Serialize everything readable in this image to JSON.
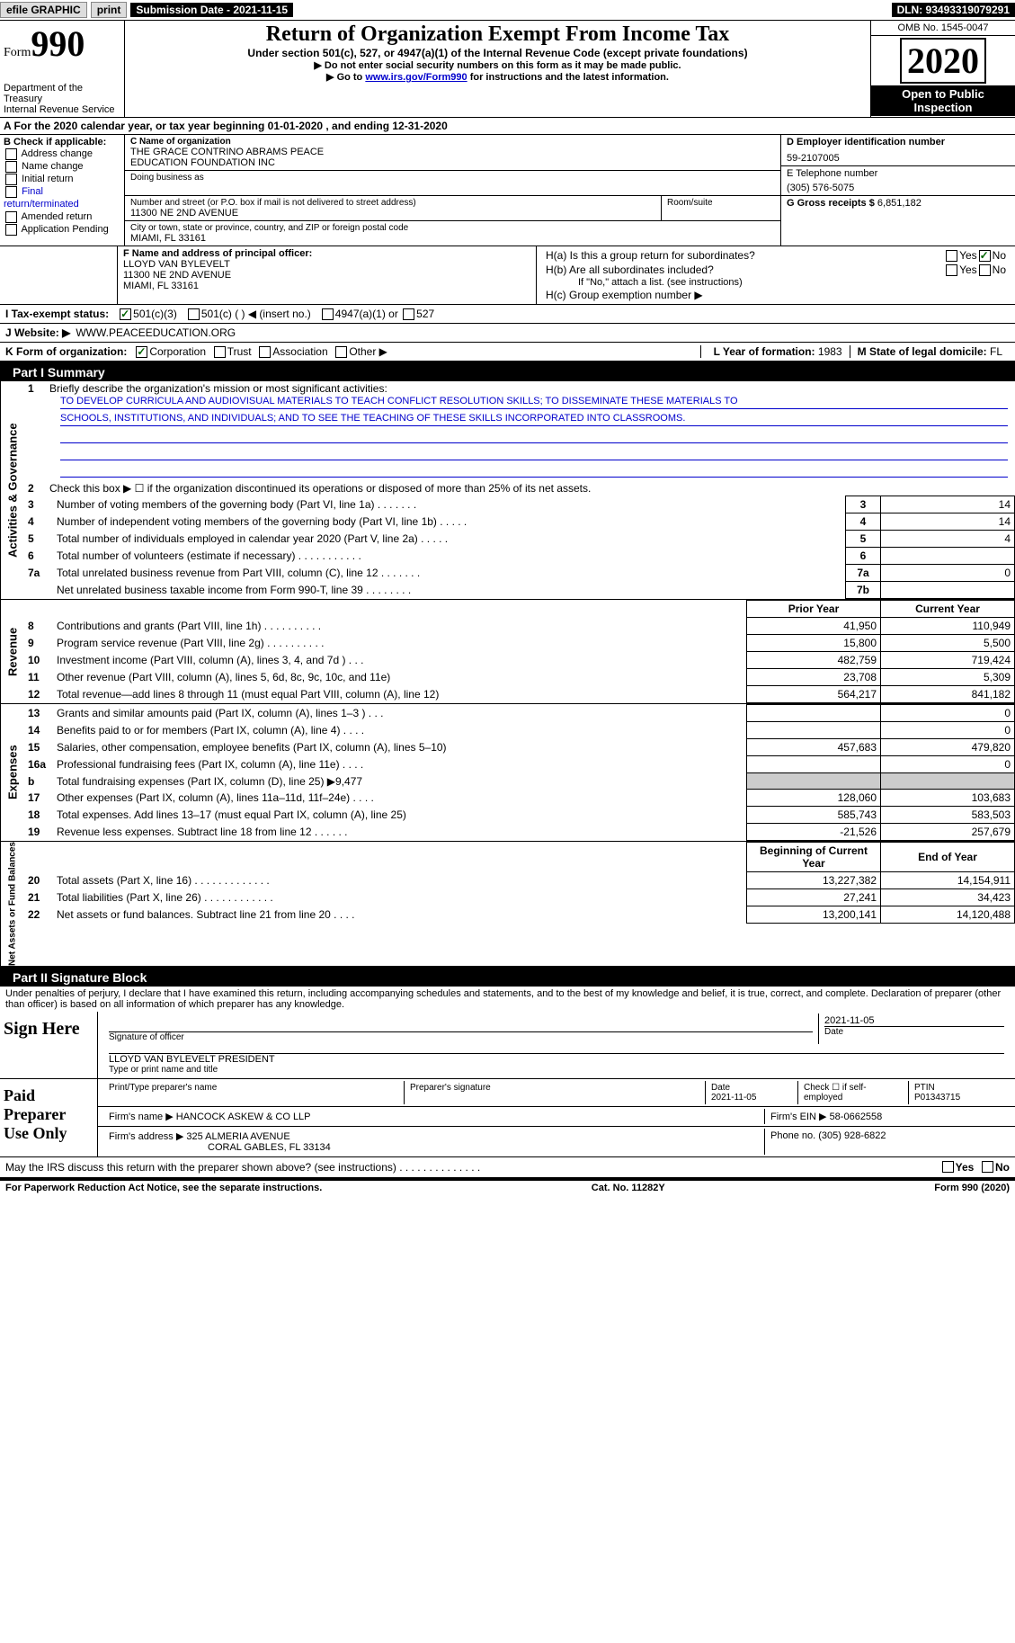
{
  "top_bar": {
    "efile": "efile GRAPHIC",
    "print": "print",
    "submission_date_label": "Submission Date - 2021-11-15",
    "dln": "DLN: 93493319079291"
  },
  "header": {
    "form_label": "Form",
    "form_number": "990",
    "dept": "Department of the Treasury",
    "irs": "Internal Revenue Service",
    "title": "Return of Organization Exempt From Income Tax",
    "subtitle": "Under section 501(c), 527, or 4947(a)(1) of the Internal Revenue Code (except private foundations)",
    "note1": "▶ Do not enter social security numbers on this form as it may be made public.",
    "note2_prefix": "▶ Go to ",
    "note2_link": "www.irs.gov/Form990",
    "note2_suffix": " for instructions and the latest information.",
    "omb": "OMB No. 1545-0047",
    "year": "2020",
    "open": "Open to Public Inspection"
  },
  "row_a": "A For the 2020 calendar year, or tax year beginning 01-01-2020    , and ending 12-31-2020",
  "block_b": {
    "header": "B Check if applicable:",
    "items": [
      "Address change",
      "Name change",
      "Initial return",
      "Final return/terminated",
      "Amended return",
      "Application Pending"
    ]
  },
  "block_c": {
    "name_label": "C Name of organization",
    "name1": "THE GRACE CONTRINO ABRAMS PEACE",
    "name2": "EDUCATION FOUNDATION INC",
    "dba_label": "Doing business as",
    "addr_label": "Number and street (or P.O. box if mail is not delivered to street address)",
    "room_label": "Room/suite",
    "addr": "11300 NE 2ND AVENUE",
    "city_label": "City or town, state or province, country, and ZIP or foreign postal code",
    "city": "MIAMI, FL  33161"
  },
  "block_d": {
    "ein_label": "D Employer identification number",
    "ein": "59-2107005",
    "phone_label": "E Telephone number",
    "phone": "(305) 576-5075",
    "gross_label": "G Gross receipts $",
    "gross": "6,851,182"
  },
  "block_f": {
    "label": "F Name and address of principal officer:",
    "name": "LLOYD VAN BYLEVELT",
    "addr": "11300 NE 2ND AVENUE",
    "city": "MIAMI, FL  33161"
  },
  "block_h": {
    "a": "H(a)  Is this a group return for subordinates?",
    "a_yes": "Yes",
    "a_no": "No",
    "b": "H(b)  Are all subordinates included?",
    "b_note": "If \"No,\" attach a list. (see instructions)",
    "c": "H(c)  Group exemption number ▶"
  },
  "row_i": {
    "label": "I   Tax-exempt status:",
    "opt1": "501(c)(3)",
    "opt2": "501(c) (  ) ◀ (insert no.)",
    "opt3": "4947(a)(1) or",
    "opt4": "527"
  },
  "row_j": {
    "label": "J   Website: ▶",
    "value": "WWW.PEACEEDUCATION.ORG"
  },
  "row_k": {
    "label": "K Form of organization:",
    "opts": [
      "Corporation",
      "Trust",
      "Association",
      "Other ▶"
    ],
    "l_label": "L Year of formation:",
    "l_val": "1983",
    "m_label": "M State of legal domicile:",
    "m_val": "FL"
  },
  "part1": {
    "header": "Part I     Summary",
    "side_ag": "Activities & Governance",
    "side_rev": "Revenue",
    "side_exp": "Expenses",
    "side_na": "Net Assets or Fund Balances",
    "line1_label": "Briefly describe the organization's mission or most significant activities:",
    "mission1": "TO DEVELOP CURRICULA AND AUDIOVISUAL MATERIALS TO TEACH CONFLICT RESOLUTION SKILLS; TO DISSEMINATE THESE MATERIALS TO",
    "mission2": "SCHOOLS, INSTITUTIONS, AND INDIVIDUALS; AND TO SEE THE TEACHING OF THESE SKILLS INCORPORATED INTO CLASSROOMS.",
    "line2": "Check this box ▶ ☐  if the organization discontinued its operations or disposed of more than 25% of its net assets.",
    "lines_ag": [
      {
        "n": "3",
        "t": "Number of voting members of the governing body (Part VI, line 1a)   .    .    .    .    .    .    .",
        "b": "3",
        "v": "14"
      },
      {
        "n": "4",
        "t": "Number of independent voting members of the governing body (Part VI, line 1b)   .    .    .    .    .",
        "b": "4",
        "v": "14"
      },
      {
        "n": "5",
        "t": "Total number of individuals employed in calendar year 2020 (Part V, line 2a)   .    .    .    .    .",
        "b": "5",
        "v": "4"
      },
      {
        "n": "6",
        "t": "Total number of volunteers (estimate if necessary)   .    .    .    .    .    .    .    .    .    .    .",
        "b": "6",
        "v": ""
      },
      {
        "n": "7a",
        "t": "Total unrelated business revenue from Part VIII, column (C), line 12   .    .    .    .    .    .    .",
        "b": "7a",
        "v": "0"
      },
      {
        "n": "",
        "t": "Net unrelated business taxable income from Form 990-T, line 39   .    .    .    .    .    .    .    .",
        "b": "7b",
        "v": ""
      }
    ],
    "py_header": "Prior Year",
    "cy_header": "Current Year",
    "lines_rev": [
      {
        "n": "8",
        "t": "Contributions and grants (Part VIII, line 1h)   .    .    .    .    .    .    .    .    .    .",
        "py": "41,950",
        "cy": "110,949"
      },
      {
        "n": "9",
        "t": "Program service revenue (Part VIII, line 2g)   .    .    .    .    .    .    .    .    .    .",
        "py": "15,800",
        "cy": "5,500"
      },
      {
        "n": "10",
        "t": "Investment income (Part VIII, column (A), lines 3, 4, and 7d )   .    .    .",
        "py": "482,759",
        "cy": "719,424"
      },
      {
        "n": "11",
        "t": "Other revenue (Part VIII, column (A), lines 5, 6d, 8c, 9c, 10c, and 11e)",
        "py": "23,708",
        "cy": "5,309"
      },
      {
        "n": "12",
        "t": "Total revenue—add lines 8 through 11 (must equal Part VIII, column (A), line 12)",
        "py": "564,217",
        "cy": "841,182"
      }
    ],
    "lines_exp": [
      {
        "n": "13",
        "t": "Grants and similar amounts paid (Part IX, column (A), lines 1–3 )   .    .    .",
        "py": "",
        "cy": "0"
      },
      {
        "n": "14",
        "t": "Benefits paid to or for members (Part IX, column (A), line 4)   .    .    .    .",
        "py": "",
        "cy": "0"
      },
      {
        "n": "15",
        "t": "Salaries, other compensation, employee benefits (Part IX, column (A), lines 5–10)",
        "py": "457,683",
        "cy": "479,820"
      },
      {
        "n": "16a",
        "t": "Professional fundraising fees (Part IX, column (A), line 11e)   .    .    .    .",
        "py": "",
        "cy": "0"
      },
      {
        "n": "b",
        "t": "Total fundraising expenses (Part IX, column (D), line 25) ▶9,477",
        "py": "GRAY",
        "cy": "GRAY"
      },
      {
        "n": "17",
        "t": "Other expenses (Part IX, column (A), lines 11a–11d, 11f–24e)   .    .    .    .",
        "py": "128,060",
        "cy": "103,683"
      },
      {
        "n": "18",
        "t": "Total expenses. Add lines 13–17 (must equal Part IX, column (A), line 25)",
        "py": "585,743",
        "cy": "583,503"
      },
      {
        "n": "19",
        "t": "Revenue less expenses. Subtract line 18 from line 12   .    .    .    .    .    .",
        "py": "-21,526",
        "cy": "257,679"
      }
    ],
    "boy_header": "Beginning of Current Year",
    "eoy_header": "End of Year",
    "lines_na": [
      {
        "n": "20",
        "t": "Total assets (Part X, line 16)   .    .    .    .    .    .    .    .    .    .    .    .    .",
        "py": "13,227,382",
        "cy": "14,154,911"
      },
      {
        "n": "21",
        "t": "Total liabilities (Part X, line 26)   .    .    .    .    .    .    .    .    .    .    .    .",
        "py": "27,241",
        "cy": "34,423"
      },
      {
        "n": "22",
        "t": "Net assets or fund balances. Subtract line 21 from line 20   .    .    .    .",
        "py": "13,200,141",
        "cy": "14,120,488"
      }
    ]
  },
  "part2": {
    "header": "Part II    Signature Block",
    "declaration": "Under penalties of perjury, I declare that I have examined this return, including accompanying schedules and statements, and to the best of my knowledge and belief, it is true, correct, and complete. Declaration of preparer (other than officer) is based on all information of which preparer has any knowledge.",
    "sign_here": "Sign Here",
    "sig_officer": "Signature of officer",
    "sig_date": "2021-11-05",
    "date_lbl": "Date",
    "officer_name": "LLOYD VAN BYLEVELT  PRESIDENT",
    "officer_type": "Type or print name and title",
    "paid": "Paid Preparer Use Only",
    "prep_name_lbl": "Print/Type preparer's name",
    "prep_sig_lbl": "Preparer's signature",
    "prep_date_lbl": "Date",
    "prep_date": "2021-11-05",
    "check_lbl": "Check ☐ if self-employed",
    "ptin_lbl": "PTIN",
    "ptin": "P01343715",
    "firm_name_lbl": "Firm's name    ▶",
    "firm_name": "HANCOCK ASKEW & CO LLP",
    "firm_ein_lbl": "Firm's EIN ▶",
    "firm_ein": "58-0662558",
    "firm_addr_lbl": "Firm's address ▶",
    "firm_addr1": "325 ALMERIA AVENUE",
    "firm_addr2": "CORAL GABLES, FL  33134",
    "firm_phone_lbl": "Phone no.",
    "firm_phone": "(305) 928-6822",
    "discuss": "May the IRS discuss this return with the preparer shown above? (see instructions)   .    .    .    .    .    .    .    .    .    .    .    .    .    .",
    "yes": "Yes",
    "no": "No"
  },
  "footer": {
    "left": "For Paperwork Reduction Act Notice, see the separate instructions.",
    "mid": "Cat. No. 11282Y",
    "right": "Form 990 (2020)"
  },
  "colors": {
    "link": "#0000cc",
    "check": "#006400",
    "gray": "#cccccc"
  }
}
